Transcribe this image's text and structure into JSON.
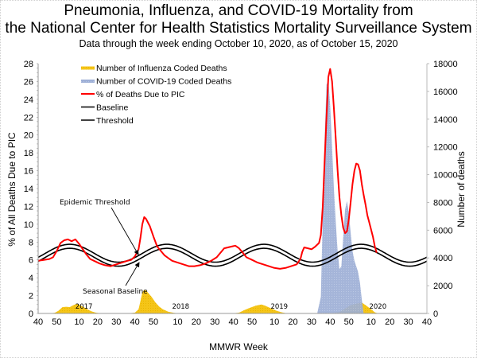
{
  "chart_data": {
    "type": "line",
    "title": "Pneumonia, Influenza, and COVID-19 Mortality from",
    "title_line2": "the National Center for Health Statistics Mortality Surveillance System",
    "subtitle": "Data through the week ending October 10, 2020, as of October 15, 2020",
    "xlabel": "MMWR Week",
    "ylabel_left": "% of All Deaths Due to PIC",
    "ylabel_right": "Number of deaths",
    "ylim_left": [
      0,
      28
    ],
    "ylim_right": [
      0,
      18000
    ],
    "yticks_left": [
      "0",
      "2",
      "4",
      "6",
      "8",
      "10",
      "12",
      "14",
      "16",
      "18",
      "20",
      "22",
      "24",
      "26",
      "28"
    ],
    "yticks_right": [
      "0",
      "2000",
      "4000",
      "6000",
      "8000",
      "10000",
      "12000",
      "14000",
      "16000",
      "18000"
    ],
    "xticks": [
      "40",
      "50",
      "10",
      "20",
      "30",
      "40",
      "50",
      "10",
      "20",
      "30",
      "40",
      "50",
      "10",
      "20",
      "30",
      "40",
      "50",
      "10",
      "20",
      "30",
      "40"
    ],
    "xtick_week_index": [
      0,
      10,
      22,
      32,
      42,
      52,
      62,
      75,
      85,
      95,
      105,
      115,
      127,
      137,
      147,
      157,
      167,
      179,
      189,
      199,
      209
    ],
    "season_labels": [
      {
        "label": "2017",
        "week_index": 20
      },
      {
        "label": "2018",
        "week_index": 72
      },
      {
        "label": "2019",
        "week_index": 125
      },
      {
        "label": "2020",
        "week_index": 178
      }
    ],
    "legend": [
      {
        "label": "Number of Influenza Coded Deaths",
        "color": "#F5C518",
        "kind": "area"
      },
      {
        "label": "Number of COVID-19 Coded Deaths",
        "color": "#9DAFD6",
        "kind": "area"
      },
      {
        "label": "% of Deaths Due to PIC",
        "color": "#FF0000",
        "kind": "line"
      },
      {
        "label": "Baseline",
        "color": "#000000",
        "kind": "line"
      },
      {
        "label": "Threshold",
        "color": "#000000",
        "kind": "line"
      }
    ],
    "legend_position": "top-left",
    "annotations": [
      {
        "label": "Epidemic Threshold",
        "week_index": 40,
        "value_pct": 7.8
      },
      {
        "label": "Seasonal Baseline",
        "week_index": 40,
        "value_pct": 2.5
      }
    ],
    "baseline": {
      "mean_pct": 6.3,
      "amplitude_pct": 1.0,
      "peak_week_index": 17,
      "period_weeks": 52.2
    },
    "threshold_offset_pct": 0.45,
    "series": [
      {
        "name": "% of Deaths Due to PIC",
        "axis": "left",
        "points": [
          [
            0,
            5.9
          ],
          [
            3,
            6.0
          ],
          [
            6,
            6.1
          ],
          [
            8,
            6.3
          ],
          [
            10,
            7.0
          ],
          [
            12,
            7.9
          ],
          [
            14,
            8.2
          ],
          [
            16,
            8.3
          ],
          [
            18,
            8.1
          ],
          [
            20,
            8.3
          ],
          [
            22,
            7.8
          ],
          [
            24,
            7.2
          ],
          [
            26,
            6.6
          ],
          [
            28,
            6.1
          ],
          [
            30,
            5.9
          ],
          [
            33,
            5.6
          ],
          [
            36,
            5.4
          ],
          [
            39,
            5.3
          ],
          [
            42,
            5.5
          ],
          [
            45,
            5.7
          ],
          [
            48,
            5.9
          ],
          [
            50,
            6.0
          ],
          [
            52,
            6.4
          ],
          [
            54,
            7.2
          ],
          [
            55,
            8.5
          ],
          [
            56,
            10.0
          ],
          [
            57,
            10.8
          ],
          [
            58,
            10.6
          ],
          [
            60,
            9.8
          ],
          [
            62,
            8.6
          ],
          [
            64,
            7.5
          ],
          [
            66,
            7.0
          ],
          [
            68,
            6.5
          ],
          [
            70,
            6.2
          ],
          [
            72,
            5.9
          ],
          [
            75,
            5.7
          ],
          [
            78,
            5.5
          ],
          [
            81,
            5.3
          ],
          [
            84,
            5.3
          ],
          [
            87,
            5.4
          ],
          [
            90,
            5.6
          ],
          [
            93,
            5.9
          ],
          [
            96,
            6.3
          ],
          [
            98,
            6.8
          ],
          [
            100,
            7.3
          ],
          [
            102,
            7.4
          ],
          [
            104,
            7.5
          ],
          [
            106,
            7.6
          ],
          [
            108,
            7.3
          ],
          [
            110,
            6.8
          ],
          [
            112,
            6.3
          ],
          [
            115,
            6.0
          ],
          [
            118,
            5.7
          ],
          [
            121,
            5.5
          ],
          [
            124,
            5.3
          ],
          [
            127,
            5.1
          ],
          [
            130,
            5.0
          ],
          [
            133,
            5.1
          ],
          [
            136,
            5.3
          ],
          [
            139,
            5.5
          ],
          [
            141,
            6.1
          ],
          [
            142,
            6.9
          ],
          [
            143,
            7.4
          ],
          [
            145,
            7.3
          ],
          [
            147,
            7.2
          ],
          [
            149,
            7.5
          ],
          [
            151,
            7.9
          ],
          [
            152,
            8.8
          ],
          [
            153,
            12.0
          ],
          [
            154,
            17.0
          ],
          [
            155,
            22.0
          ],
          [
            156,
            26.5
          ],
          [
            157,
            27.4
          ],
          [
            158,
            26.0
          ],
          [
            159,
            23.0
          ],
          [
            160,
            19.5
          ],
          [
            161,
            16.0
          ],
          [
            162,
            13.0
          ],
          [
            163,
            11.0
          ],
          [
            164,
            9.6
          ],
          [
            165,
            9.0
          ],
          [
            166,
            9.2
          ],
          [
            167,
            10.5
          ],
          [
            168,
            12.5
          ],
          [
            169,
            14.5
          ],
          [
            170,
            16.0
          ],
          [
            171,
            16.8
          ],
          [
            172,
            16.7
          ],
          [
            173,
            16.0
          ],
          [
            174,
            14.5
          ],
          [
            175,
            13.3
          ],
          [
            176,
            12.2
          ],
          [
            177,
            11.0
          ],
          [
            178,
            10.2
          ],
          [
            179,
            9.4
          ],
          [
            180,
            8.6
          ],
          [
            181,
            7.5
          ],
          [
            182,
            6.8
          ]
        ]
      },
      {
        "name": "Number of COVID-19 Coded Deaths",
        "axis": "right",
        "points": [
          [
            150,
            0
          ],
          [
            152,
            1200
          ],
          [
            153,
            7000
          ],
          [
            154,
            12500
          ],
          [
            155,
            16500
          ],
          [
            156,
            16800
          ],
          [
            157,
            15000
          ],
          [
            158,
            12000
          ],
          [
            159,
            9000
          ],
          [
            160,
            6500
          ],
          [
            161,
            4500
          ],
          [
            162,
            3200
          ],
          [
            163,
            3400
          ],
          [
            164,
            5500
          ],
          [
            165,
            7500
          ],
          [
            166,
            8100
          ],
          [
            167,
            7300
          ],
          [
            168,
            5800
          ],
          [
            169,
            4500
          ],
          [
            170,
            3800
          ],
          [
            171,
            3400
          ],
          [
            172,
            3000
          ],
          [
            173,
            2200
          ],
          [
            174,
            1000
          ],
          [
            175,
            0
          ]
        ]
      },
      {
        "name": "Number of Influenza Coded Deaths",
        "axis": "right",
        "points": [
          [
            0,
            0
          ],
          [
            6,
            0
          ],
          [
            9,
            50
          ],
          [
            11,
            200
          ],
          [
            13,
            450
          ],
          [
            15,
            480
          ],
          [
            17,
            460
          ],
          [
            19,
            600
          ],
          [
            21,
            700
          ],
          [
            23,
            560
          ],
          [
            25,
            420
          ],
          [
            27,
            260
          ],
          [
            29,
            140
          ],
          [
            31,
            60
          ],
          [
            34,
            0
          ],
          [
            48,
            0
          ],
          [
            52,
            60
          ],
          [
            54,
            300
          ],
          [
            55,
            900
          ],
          [
            56,
            1500
          ],
          [
            57,
            1700
          ],
          [
            58,
            1650
          ],
          [
            59,
            1500
          ],
          [
            61,
            1200
          ],
          [
            63,
            800
          ],
          [
            65,
            500
          ],
          [
            67,
            300
          ],
          [
            70,
            120
          ],
          [
            73,
            40
          ],
          [
            76,
            0
          ],
          [
            104,
            0
          ],
          [
            108,
            60
          ],
          [
            111,
            250
          ],
          [
            114,
            420
          ],
          [
            117,
            560
          ],
          [
            120,
            650
          ],
          [
            122,
            560
          ],
          [
            125,
            380
          ],
          [
            128,
            200
          ],
          [
            131,
            80
          ],
          [
            134,
            0
          ],
          [
            157,
            0
          ],
          [
            162,
            100
          ],
          [
            165,
            350
          ],
          [
            168,
            600
          ],
          [
            171,
            700
          ],
          [
            173,
            760
          ],
          [
            174,
            780
          ],
          [
            176,
            600
          ],
          [
            179,
            300
          ],
          [
            181,
            80
          ],
          [
            183,
            0
          ],
          [
            209,
            0
          ]
        ]
      }
    ]
  }
}
